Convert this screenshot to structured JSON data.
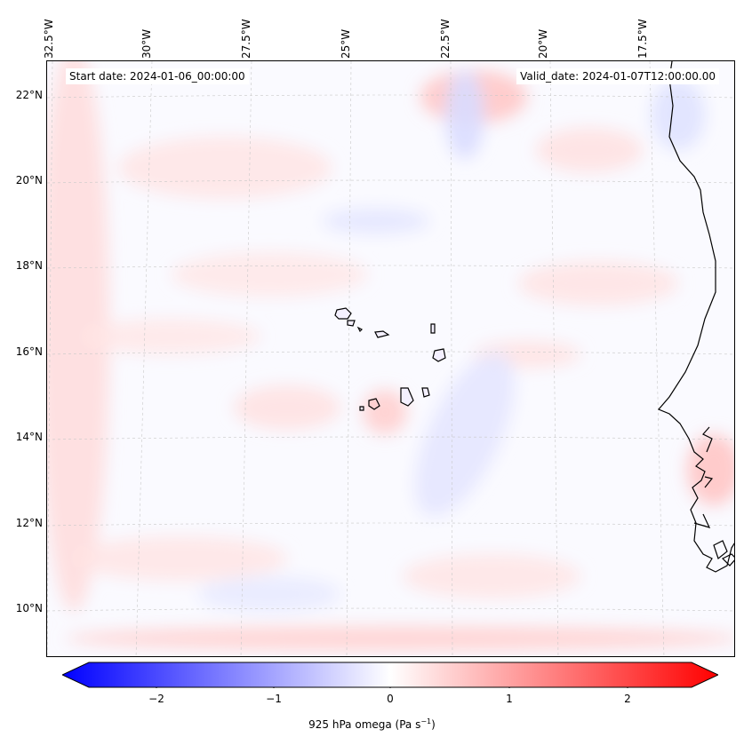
{
  "header": {
    "start_date": "Start date: 2024-01-06_00:00:00",
    "valid_date": "Valid_date: 2024-01-07T12:00:00.00"
  },
  "axes": {
    "lon_labels": [
      "32.5°W",
      "30°W",
      "27.5°W",
      "25°W",
      "22.5°W",
      "20°W",
      "17.5°W"
    ],
    "lat_labels": [
      "22°N",
      "20°N",
      "18°N",
      "16°N",
      "14°N",
      "12°N",
      "10°N"
    ]
  },
  "colorbar": {
    "ticks": [
      "−2",
      "−1",
      "0",
      "1",
      "2"
    ],
    "title": "925 hPa omega (Pa s",
    "title_sup": "−1",
    "title_end": ")",
    "range": [
      -2.6,
      2.6
    ],
    "cmap": "bwr"
  },
  "colors": {
    "negative": "#0000ff",
    "positive": "#ff0000",
    "neutral": "#ffffff",
    "coastline": "#000000"
  }
}
